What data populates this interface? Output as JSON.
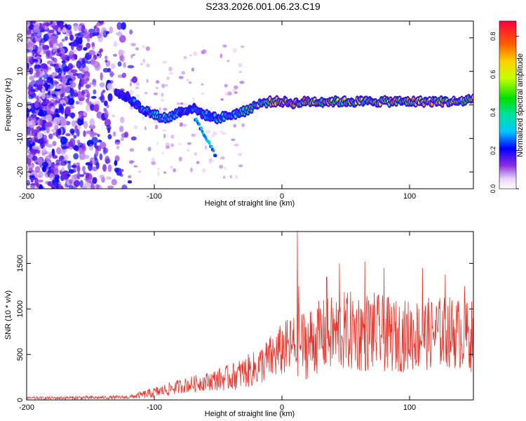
{
  "title": "S233.2026.001.06.23.C19",
  "colors": {
    "snr_line": "#e8332a",
    "background": "#ffffff",
    "axis": "#000000"
  },
  "chart_data": [
    {
      "type": "heatmap",
      "title": "S233.2026.001.06.23.C19",
      "xlabel": "Height of straight line (km)",
      "ylabel": "Frequency (Hz)",
      "xlim": [
        -200,
        150
      ],
      "ylim": [
        -25,
        25
      ],
      "xticks": [
        -200,
        -100,
        0,
        100
      ],
      "xtick_labels": [
        "-200",
        "-100",
        "0",
        "100"
      ],
      "yticks": [
        -20,
        -10,
        0,
        10,
        20
      ],
      "ytick_labels": [
        "-20",
        "-10",
        "0",
        "10",
        "20"
      ],
      "colorbar": {
        "label": "Normalized spectral amplitude",
        "range": [
          0,
          0.88
        ],
        "ticks": [
          0,
          0.2,
          0.4,
          0.6,
          0.8
        ],
        "tick_labels": [
          "0.0",
          "0.2",
          "0.4",
          "0.6",
          "0.8"
        ]
      },
      "ridge": {
        "x": [
          -130,
          -120,
          -110,
          -100,
          -90,
          -80,
          -70,
          -60,
          -50,
          -40,
          -30,
          -20,
          -10,
          0,
          10,
          20,
          30,
          40,
          50,
          60,
          70,
          80,
          90,
          100,
          110,
          120,
          130,
          140,
          150
        ],
        "frequency": [
          4,
          2,
          -1,
          -3,
          -4,
          -2,
          -1,
          -3,
          -4,
          -3,
          -2,
          0,
          1,
          1,
          0.5,
          1,
          1,
          1,
          1,
          1,
          1,
          1,
          1,
          1,
          1,
          1,
          1,
          1,
          2
        ],
        "amplitude": [
          0.25,
          0.3,
          0.35,
          0.45,
          0.45,
          0.35,
          0.3,
          0.3,
          0.35,
          0.4,
          0.5,
          0.6,
          0.7,
          0.8,
          0.88,
          0.8,
          0.75,
          0.75,
          0.7,
          0.72,
          0.7,
          0.72,
          0.75,
          0.75,
          0.8,
          0.8,
          0.75,
          0.7,
          0.75
        ]
      }
    },
    {
      "type": "line",
      "xlabel": "Height of straight line (km)",
      "ylabel": "SNR (10 * v/v)",
      "xlim": [
        -200,
        150
      ],
      "ylim": [
        0,
        1850
      ],
      "xticks": [
        -200,
        -100,
        0,
        100
      ],
      "xtick_labels": [
        "-200",
        "-100",
        "0",
        "100"
      ],
      "yticks": [
        0,
        500,
        1000,
        1500
      ],
      "ytick_labels": [
        "0",
        "500",
        "1000",
        "1500"
      ],
      "series": [
        {
          "name": "SNR",
          "envelope_x": [
            -200,
            -150,
            -120,
            -100,
            -80,
            -60,
            -40,
            -20,
            -10,
            0,
            10,
            20,
            30,
            50,
            70,
            90,
            110,
            130,
            150
          ],
          "envelope_mean": [
            20,
            25,
            30,
            80,
            150,
            200,
            250,
            350,
            450,
            550,
            600,
            620,
            700,
            750,
            750,
            700,
            720,
            750,
            700
          ],
          "envelope_spread": [
            15,
            20,
            20,
            60,
            80,
            100,
            150,
            200,
            250,
            300,
            350,
            400,
            400,
            450,
            450,
            400,
            400,
            400,
            400
          ],
          "spikes": [
            {
              "x": 12,
              "y": 1850
            },
            {
              "x": 13,
              "y": 1250
            },
            {
              "x": 35,
              "y": 1350
            },
            {
              "x": 45,
              "y": 1500
            },
            {
              "x": 65,
              "y": 1520
            },
            {
              "x": 80,
              "y": 1450
            },
            {
              "x": 110,
              "y": 1450
            },
            {
              "x": 128,
              "y": 1380
            },
            {
              "x": 143,
              "y": 1250
            }
          ]
        }
      ]
    }
  ]
}
